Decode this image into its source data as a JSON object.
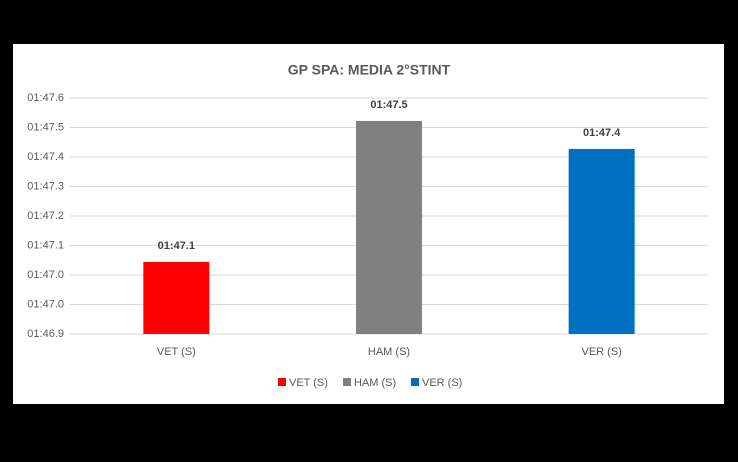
{
  "chart_data": {
    "type": "bar",
    "title": "GP SPA: MEDIA 2°STINT",
    "categories": [
      "VET (S)",
      "HAM (S)",
      "VER (S)"
    ],
    "values": [
      107.081,
      107.494,
      107.412
    ],
    "value_labels": [
      "01:47.1",
      "01:47.5",
      "01:47.4"
    ],
    "colors": [
      "#ff0000",
      "#808080",
      "#0070c0"
    ],
    "ylim": [
      106.87,
      107.5612
    ],
    "yticks": [
      {
        "value": 106.87,
        "label": "01:46.9"
      },
      {
        "value": 106.9564,
        "label": "01:47.0"
      },
      {
        "value": 107.0428,
        "label": "01:47.0"
      },
      {
        "value": 107.1292,
        "label": "01:47.1"
      },
      {
        "value": 107.2156,
        "label": "01:47.2"
      },
      {
        "value": 107.302,
        "label": "01:47.3"
      },
      {
        "value": 107.3884,
        "label": "01:47.4"
      },
      {
        "value": 107.4748,
        "label": "01:47.5"
      },
      {
        "value": 107.5612,
        "label": "01:47.6"
      }
    ],
    "grid": true,
    "legend": "bottom"
  }
}
